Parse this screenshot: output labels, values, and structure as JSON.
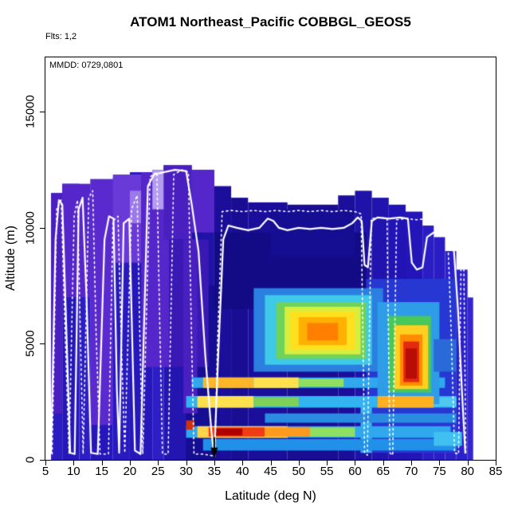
{
  "title": "ATOM1 Northeast_Pacific COBBGL_GEOS5",
  "annotations": {
    "flights": "Flts: 1,2",
    "mmdd": "MMDD: 0729,0801"
  },
  "axes": {
    "x": {
      "label": "Latitude (deg N)",
      "ticks": [
        5,
        10,
        15,
        20,
        25,
        30,
        35,
        40,
        45,
        50,
        55,
        60,
        65,
        70,
        75,
        80,
        85
      ],
      "range": [
        5,
        85
      ]
    },
    "y": {
      "label": "Altitude (m)",
      "ticks": [
        0,
        5000,
        10000,
        15000
      ],
      "range": [
        0,
        17350
      ]
    }
  },
  "chart_data": {
    "type": "heatmap",
    "title": "ATOM1 Northeast_Pacific COBBGL_GEOS5",
    "xlabel": "Latitude (deg N)",
    "ylabel": "Altitude (m)",
    "xlim": [
      5,
      85
    ],
    "ylim": [
      0,
      17350
    ],
    "grid": false,
    "legend": "none (no colorbar shown)",
    "regions_format": [
      "lat_min",
      "lat_max",
      "alt_min_m",
      "alt_max_m",
      "color"
    ],
    "regions": [
      [
        6,
        8,
        0,
        11500,
        "#2a1cc0"
      ],
      [
        8,
        11,
        0,
        11900,
        "#2517ba"
      ],
      [
        11,
        13,
        0,
        11600,
        "#2c1ec4"
      ],
      [
        13,
        17,
        0,
        12100,
        "#2517ba"
      ],
      [
        17,
        20,
        0,
        12200,
        "#281ac0"
      ],
      [
        20,
        24,
        0,
        12400,
        "#2517ba"
      ],
      [
        24,
        26,
        0,
        12500,
        "#2c1ec4"
      ],
      [
        26,
        31,
        0,
        12700,
        "#2315b0"
      ],
      [
        31,
        35,
        0,
        12500,
        "#1f12a6"
      ],
      [
        35,
        38,
        0,
        11800,
        "#1a0e9a"
      ],
      [
        38,
        41,
        0,
        11300,
        "#190d94"
      ],
      [
        41,
        48,
        0,
        11100,
        "#1a0e9a"
      ],
      [
        48,
        57,
        0,
        11000,
        "#190d94"
      ],
      [
        57,
        60,
        0,
        11400,
        "#1a0e9a"
      ],
      [
        60,
        63,
        0,
        11600,
        "#1e12a8"
      ],
      [
        63,
        66,
        0,
        11300,
        "#2013ae"
      ],
      [
        66,
        69,
        0,
        11000,
        "#2214b4"
      ],
      [
        69,
        72,
        0,
        10700,
        "#2315b8"
      ],
      [
        72,
        74,
        0,
        10100,
        "#2a1dc6"
      ],
      [
        74,
        76,
        0,
        9600,
        "#2a1dc6"
      ],
      [
        76,
        78,
        0,
        9000,
        "#2c20ca"
      ],
      [
        78,
        80,
        0,
        8200,
        "#2c20ca"
      ],
      [
        80,
        81,
        0,
        7000,
        "#3326d2"
      ],
      [
        30,
        36,
        0,
        7500,
        "#150d92"
      ],
      [
        35,
        62,
        6500,
        9800,
        "#130b86"
      ],
      [
        45,
        60,
        8800,
        10800,
        "#150d92"
      ],
      [
        6,
        8,
        2000,
        11500,
        "#4a1fc0"
      ],
      [
        8,
        13,
        7000,
        11900,
        "#5526ca"
      ],
      [
        13,
        17,
        1500,
        12100,
        "#5a2ace"
      ],
      [
        17,
        22,
        8500,
        12300,
        "#6a3ad8"
      ],
      [
        20,
        22,
        10200,
        11600,
        "#9b79ea"
      ],
      [
        22,
        27,
        4000,
        12400,
        "#5526ca"
      ],
      [
        24,
        26.5,
        10800,
        12500,
        "#b49cf0"
      ],
      [
        26,
        31,
        9500,
        12700,
        "#4a1fc0"
      ],
      [
        27,
        34,
        4000,
        9500,
        "#3a18b4"
      ],
      [
        31,
        35,
        9800,
        12500,
        "#5526ca"
      ],
      [
        29.5,
        32,
        2000,
        9500,
        "#4a1fc0"
      ],
      [
        62,
        78,
        300,
        7800,
        "#2637d2"
      ],
      [
        61,
        63,
        300,
        2500,
        "#35b4ee"
      ],
      [
        33,
        78,
        400,
        900,
        "#2090e8"
      ],
      [
        30,
        77,
        950,
        1450,
        "#2fa8ee"
      ],
      [
        32,
        48,
        950,
        1450,
        "#ffd24a"
      ],
      [
        34,
        44,
        1000,
        1400,
        "#f03c14"
      ],
      [
        35,
        40,
        1050,
        1350,
        "#b00000"
      ],
      [
        44,
        52,
        1000,
        1400,
        "#ff9a20"
      ],
      [
        52,
        60,
        1000,
        1400,
        "#8fe060"
      ],
      [
        30,
        31.5,
        1300,
        1700,
        "#d03010"
      ],
      [
        44,
        78,
        1600,
        2000,
        "#2a8ce0"
      ],
      [
        30,
        78,
        2250,
        2750,
        "#31b4f0"
      ],
      [
        32,
        42,
        2250,
        2750,
        "#ffe14e"
      ],
      [
        42,
        50,
        2300,
        2700,
        "#7fd058"
      ],
      [
        74,
        78,
        2300,
        2700,
        "#4fc8f0"
      ],
      [
        31,
        76,
        3100,
        3550,
        "#2fa8ee"
      ],
      [
        33,
        42,
        3100,
        3550,
        "#ffb728"
      ],
      [
        42,
        50,
        3100,
        3550,
        "#ffe14e"
      ],
      [
        50,
        58,
        3150,
        3500,
        "#8fe060"
      ],
      [
        42,
        65,
        3800,
        7400,
        "#2a7fe0"
      ],
      [
        44,
        63,
        4100,
        7100,
        "#3fc9e8"
      ],
      [
        46,
        62,
        4350,
        6800,
        "#6fd25a"
      ],
      [
        47.5,
        61,
        4550,
        6600,
        "#d8ee3e"
      ],
      [
        48.5,
        60,
        4750,
        6400,
        "#ffe01e"
      ],
      [
        50,
        58.5,
        4950,
        6150,
        "#ffb000"
      ],
      [
        51.5,
        57,
        5150,
        5900,
        "#ff8000"
      ],
      [
        64,
        75,
        2400,
        6800,
        "#2f9ce8"
      ],
      [
        64,
        74,
        2250,
        2750,
        "#ffb020"
      ],
      [
        66,
        73.5,
        2900,
        6200,
        "#49c85a"
      ],
      [
        67,
        73,
        3050,
        5800,
        "#ffd022"
      ],
      [
        68,
        72,
        3200,
        5400,
        "#ff8c00"
      ],
      [
        68.6,
        71.4,
        3350,
        5100,
        "#e32a10"
      ],
      [
        69,
        71,
        3500,
        4800,
        "#b80d06"
      ],
      [
        74,
        79,
        600,
        1200,
        "#3fc0f0"
      ],
      [
        74,
        78,
        3800,
        5200,
        "#2a6ad8"
      ]
    ],
    "tracks_format": [
      "lat",
      "alt_m"
    ],
    "tracks": [
      {
        "name": "flight-track-solid",
        "style": "solid",
        "color": "#ffffff",
        "width": 2.2,
        "points": [
          [
            6,
            300
          ],
          [
            6.8,
            9500
          ],
          [
            7.4,
            11200
          ],
          [
            8,
            11000
          ],
          [
            8.6,
            6500
          ],
          [
            9.4,
            300
          ],
          [
            10.2,
            250
          ],
          [
            10.9,
            10800
          ],
          [
            11.6,
            11300
          ],
          [
            12.3,
            7000
          ],
          [
            13.1,
            300
          ],
          [
            14.3,
            250
          ],
          [
            15.5,
            9500
          ],
          [
            16.3,
            10500
          ],
          [
            17.1,
            10400
          ],
          [
            17.7,
            3000
          ],
          [
            18.1,
            300
          ],
          [
            18.9,
            10200
          ],
          [
            19.9,
            10400
          ],
          [
            20.9,
            400
          ],
          [
            21.9,
            250
          ],
          [
            23.2,
            11800
          ],
          [
            24.3,
            12300
          ],
          [
            26,
            12400
          ],
          [
            28,
            12500
          ],
          [
            30,
            12450
          ],
          [
            31,
            11000
          ],
          [
            32.2,
            9000
          ],
          [
            33.4,
            4500
          ],
          [
            34.5,
            1200
          ],
          [
            35,
            150
          ],
          [
            35.7,
            4500
          ],
          [
            36.6,
            9500
          ],
          [
            37.5,
            10100
          ],
          [
            39,
            10000
          ],
          [
            41,
            9900
          ],
          [
            43,
            10000
          ],
          [
            44.5,
            10400
          ],
          [
            45.5,
            10300
          ],
          [
            46.5,
            10000
          ],
          [
            48,
            9900
          ],
          [
            50,
            10000
          ],
          [
            52,
            9950
          ],
          [
            54,
            10000
          ],
          [
            56,
            9950
          ],
          [
            58,
            10000
          ],
          [
            59.5,
            10200
          ],
          [
            60.5,
            10450
          ],
          [
            61.2,
            10300
          ],
          [
            61.7,
            8400
          ],
          [
            62.3,
            8300
          ],
          [
            63,
            10300
          ],
          [
            64,
            10450
          ],
          [
            66,
            10400
          ],
          [
            68,
            10450
          ],
          [
            69.4,
            10400
          ],
          [
            70.1,
            8500
          ],
          [
            71,
            8200
          ],
          [
            72,
            8300
          ],
          [
            72.8,
            9600
          ],
          [
            74,
            9800
          ],
          [
            75.5,
            9700
          ],
          [
            76.8,
            9600
          ],
          [
            77.5,
            9300
          ],
          [
            78.3,
            6500
          ],
          [
            79,
            3000
          ],
          [
            79.6,
            300
          ]
        ]
      },
      {
        "name": "flight-track-dotted",
        "style": "dotted",
        "color": "#ffffff",
        "width": 1.6,
        "points": [
          [
            6.2,
            250
          ],
          [
            7,
            10800
          ],
          [
            7.8,
            11200
          ],
          [
            8.5,
            5500
          ],
          [
            9.2,
            250
          ],
          [
            10.1,
            10500
          ],
          [
            10.7,
            11200
          ],
          [
            11.2,
            5500
          ],
          [
            11.7,
            250
          ],
          [
            12.7,
            11300
          ],
          [
            13.4,
            11600
          ],
          [
            14,
            5500
          ],
          [
            14.7,
            250
          ],
          [
            16.2,
            250
          ],
          [
            17,
            10300
          ],
          [
            17.9,
            10500
          ],
          [
            18.5,
            5000
          ],
          [
            19.1,
            300
          ],
          [
            20.3,
            10800
          ],
          [
            21.3,
            11400
          ],
          [
            21.8,
            5000
          ],
          [
            22.3,
            250
          ],
          [
            23.6,
            12200
          ],
          [
            24.8,
            12400
          ],
          [
            25.3,
            6000
          ],
          [
            25.8,
            250
          ],
          [
            26.8,
            250
          ],
          [
            27.8,
            12300
          ],
          [
            29.3,
            12500
          ],
          [
            30.4,
            12400
          ],
          [
            30.9,
            6000
          ],
          [
            31.4,
            250
          ],
          [
            32.8,
            250
          ],
          [
            34.2,
            200
          ],
          [
            35.1,
            150
          ],
          [
            35.6,
            5200
          ],
          [
            36.4,
            10700
          ],
          [
            38,
            10750
          ],
          [
            40,
            10700
          ],
          [
            42,
            10750
          ],
          [
            44,
            10700
          ],
          [
            46,
            10750
          ],
          [
            48,
            10700
          ],
          [
            50,
            10750
          ],
          [
            52,
            10700
          ],
          [
            54,
            10750
          ],
          [
            56,
            10700
          ],
          [
            58,
            10750
          ],
          [
            60,
            10700
          ],
          [
            61.1,
            10600
          ],
          [
            61.7,
            300
          ],
          [
            62.2,
            200
          ],
          [
            62.9,
            10400
          ],
          [
            64.4,
            10450
          ],
          [
            65.7,
            10400
          ],
          [
            66.2,
            300
          ],
          [
            66.7,
            200
          ],
          [
            67.4,
            10350
          ],
          [
            69,
            10400
          ],
          [
            71,
            10350
          ],
          [
            73,
            10400
          ],
          [
            75,
            10300
          ],
          [
            76.4,
            10200
          ],
          [
            77.1,
            5500
          ],
          [
            77.7,
            300
          ],
          [
            78.4,
            250
          ],
          [
            78.9,
            9400
          ],
          [
            79.3,
            9300
          ],
          [
            79.7,
            300
          ]
        ]
      }
    ],
    "arrow_marker": {
      "lat": 35,
      "alt_top_m": 950,
      "alt_tip_m": 40,
      "color": "#000000"
    }
  }
}
